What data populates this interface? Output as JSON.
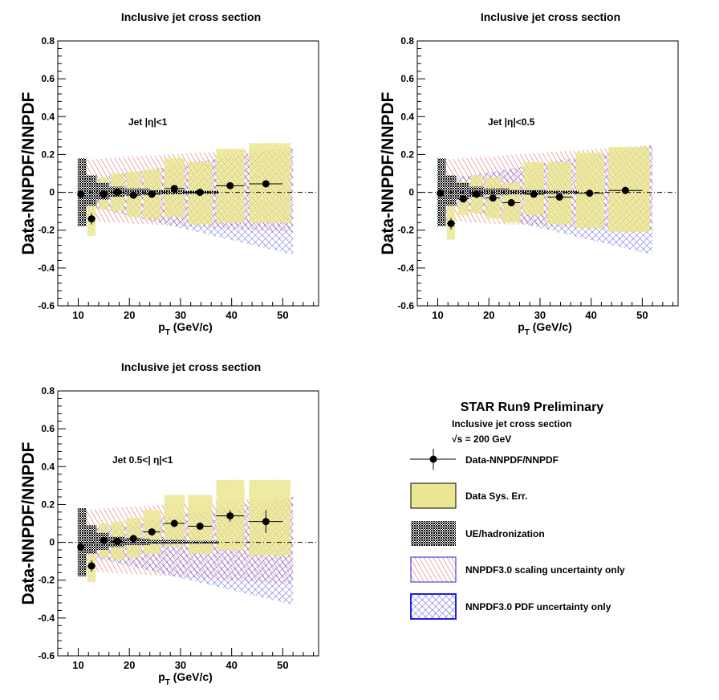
{
  "figure": {
    "status": "STAR Run9 Preliminary",
    "subtitle": "Inclusive jet cross section",
    "energy_label": "√s = 200 GeV",
    "colors": {
      "background": "#ffffff",
      "data_sys": "#e6e08a",
      "ue_hadronization": "#000000",
      "scaling": "#e02020",
      "pdf": "#2020e0",
      "reference_line": "#000000"
    }
  },
  "legend": [
    {
      "label": "Data-NNPDF/NNPDF",
      "type": "marker"
    },
    {
      "label": "Data Sys. Err.",
      "type": "sys"
    },
    {
      "label": "UE/hadronization",
      "type": "ue"
    },
    {
      "label": "NNPDF3.0 scaling uncertainty only",
      "type": "scaling"
    },
    {
      "label": "NNPDF3.0 PDF uncertainty only",
      "type": "pdf"
    }
  ],
  "chart_data": [
    {
      "type": "scatter",
      "title": "Inclusive jet cross section",
      "annotation": "Jet |η|<1",
      "xlabel": "pT (GeV/c)",
      "ylabel": "Data-NNPDF/NNPDF",
      "xlim": [
        6,
        57
      ],
      "ylim": [
        -0.6,
        0.8
      ],
      "xticks": [
        10,
        20,
        30,
        40,
        50
      ],
      "yticks": [
        -0.6,
        -0.4,
        -0.2,
        0,
        0.2,
        0.4,
        0.6,
        0.8
      ],
      "grid": false,
      "points": [
        {
          "x": 10.5,
          "y": -0.01,
          "xerr": 0.6
        },
        {
          "x": 12.6,
          "y": -0.14,
          "xerr": 0.8,
          "yerr": 0.03
        },
        {
          "x": 15.0,
          "y": -0.01,
          "xerr": 1.0
        },
        {
          "x": 17.6,
          "y": 0.0,
          "xerr": 1.2
        },
        {
          "x": 20.8,
          "y": -0.015,
          "xerr": 1.4
        },
        {
          "x": 24.4,
          "y": -0.01,
          "xerr": 1.7
        },
        {
          "x": 28.8,
          "y": 0.02,
          "xerr": 2.0
        },
        {
          "x": 33.8,
          "y": 0.0,
          "xerr": 2.4
        },
        {
          "x": 39.7,
          "y": 0.035,
          "xerr": 2.8
        },
        {
          "x": 46.7,
          "y": 0.045,
          "xerr": 3.3,
          "yerr": 0.02
        }
      ],
      "data_sys": [
        {
          "x0": 9.9,
          "x1": 11.1,
          "lo": -0.05,
          "hi": 0.04
        },
        {
          "x0": 11.8,
          "x1": 13.4,
          "lo": -0.23,
          "hi": -0.06
        },
        {
          "x0": 14.0,
          "x1": 16.0,
          "lo": -0.09,
          "hi": 0.08
        },
        {
          "x0": 16.4,
          "x1": 18.9,
          "lo": -0.1,
          "hi": 0.1
        },
        {
          "x0": 19.4,
          "x1": 22.3,
          "lo": -0.13,
          "hi": 0.11
        },
        {
          "x0": 22.7,
          "x1": 26.2,
          "lo": -0.14,
          "hi": 0.12
        },
        {
          "x0": 26.8,
          "x1": 30.8,
          "lo": -0.13,
          "hi": 0.18
        },
        {
          "x0": 31.5,
          "x1": 36.2,
          "lo": -0.17,
          "hi": 0.16
        },
        {
          "x0": 37.0,
          "x1": 42.5,
          "lo": -0.16,
          "hi": 0.23
        },
        {
          "x0": 43.4,
          "x1": 51.5,
          "lo": -0.16,
          "hi": 0.26
        }
      ],
      "ue_had": [
        {
          "x0": 9.9,
          "x1": 11.6,
          "lo": -0.18,
          "hi": 0.18
        },
        {
          "x0": 11.6,
          "x1": 13.6,
          "lo": -0.07,
          "hi": 0.09
        },
        {
          "x0": 13.6,
          "x1": 16.0,
          "lo": -0.04,
          "hi": 0.05
        },
        {
          "x0": 16.0,
          "x1": 19.0,
          "lo": -0.025,
          "hi": 0.03
        },
        {
          "x0": 19.0,
          "x1": 24.0,
          "lo": -0.015,
          "hi": 0.02
        },
        {
          "x0": 24.0,
          "x1": 31.0,
          "lo": -0.01,
          "hi": 0.012
        },
        {
          "x0": 31.0,
          "x1": 37.5,
          "lo": -0.008,
          "hi": 0.008
        }
      ],
      "scaling_band": {
        "x": [
          10,
          52
        ],
        "lo": [
          -0.15,
          -0.21
        ],
        "hi": [
          0.17,
          0.24
        ]
      },
      "pdf_band": {
        "x": [
          10,
          52
        ],
        "lo": [
          -0.06,
          -0.33
        ],
        "hi": [
          0.06,
          0.24
        ]
      }
    },
    {
      "type": "scatter",
      "title": "Inclusive jet cross section",
      "annotation": "Jet |η|<0.5",
      "xlabel": "pT (GeV/c)",
      "ylabel": "Data-NNPDF/NNPDF",
      "xlim": [
        6,
        57
      ],
      "ylim": [
        -0.6,
        0.8
      ],
      "xticks": [
        10,
        20,
        30,
        40,
        50
      ],
      "yticks": [
        -0.6,
        -0.4,
        -0.2,
        0,
        0.2,
        0.4,
        0.6,
        0.8
      ],
      "grid": false,
      "points": [
        {
          "x": 10.5,
          "y": -0.005,
          "xerr": 0.6
        },
        {
          "x": 12.6,
          "y": -0.165,
          "xerr": 0.8,
          "yerr": 0.03
        },
        {
          "x": 15.0,
          "y": -0.035,
          "xerr": 1.0
        },
        {
          "x": 17.6,
          "y": -0.01,
          "xerr": 1.2
        },
        {
          "x": 20.8,
          "y": -0.03,
          "xerr": 1.4
        },
        {
          "x": 24.4,
          "y": -0.055,
          "xerr": 1.7
        },
        {
          "x": 28.8,
          "y": -0.01,
          "xerr": 2.0
        },
        {
          "x": 33.8,
          "y": -0.025,
          "xerr": 2.4
        },
        {
          "x": 39.7,
          "y": -0.005,
          "xerr": 2.8
        },
        {
          "x": 46.7,
          "y": 0.01,
          "xerr": 3.3,
          "yerr": 0.02
        }
      ],
      "data_sys": [
        {
          "x0": 9.9,
          "x1": 11.1,
          "lo": -0.05,
          "hi": 0.04
        },
        {
          "x0": 11.8,
          "x1": 13.4,
          "lo": -0.25,
          "hi": -0.07
        },
        {
          "x0": 14.0,
          "x1": 16.0,
          "lo": -0.12,
          "hi": 0.06
        },
        {
          "x0": 16.4,
          "x1": 18.9,
          "lo": -0.11,
          "hi": 0.09
        },
        {
          "x0": 19.4,
          "x1": 22.3,
          "lo": -0.14,
          "hi": 0.08
        },
        {
          "x0": 22.7,
          "x1": 26.2,
          "lo": -0.16,
          "hi": 0.05
        },
        {
          "x0": 26.8,
          "x1": 30.8,
          "lo": -0.12,
          "hi": 0.16
        },
        {
          "x0": 31.5,
          "x1": 36.2,
          "lo": -0.17,
          "hi": 0.16
        },
        {
          "x0": 37.0,
          "x1": 42.5,
          "lo": -0.19,
          "hi": 0.21
        },
        {
          "x0": 43.4,
          "x1": 51.5,
          "lo": -0.21,
          "hi": 0.24
        }
      ],
      "ue_had": [
        {
          "x0": 9.9,
          "x1": 11.6,
          "lo": -0.18,
          "hi": 0.18
        },
        {
          "x0": 11.6,
          "x1": 13.6,
          "lo": -0.07,
          "hi": 0.09
        },
        {
          "x0": 13.6,
          "x1": 16.0,
          "lo": -0.04,
          "hi": 0.05
        },
        {
          "x0": 16.0,
          "x1": 19.0,
          "lo": -0.025,
          "hi": 0.03
        },
        {
          "x0": 19.0,
          "x1": 24.0,
          "lo": -0.015,
          "hi": 0.02
        },
        {
          "x0": 24.0,
          "x1": 31.0,
          "lo": -0.01,
          "hi": 0.012
        },
        {
          "x0": 31.0,
          "x1": 37.5,
          "lo": -0.008,
          "hi": 0.008
        }
      ],
      "scaling_band": {
        "x": [
          10,
          52
        ],
        "lo": [
          -0.15,
          -0.21
        ],
        "hi": [
          0.17,
          0.25
        ]
      },
      "pdf_band": {
        "x": [
          10,
          52
        ],
        "lo": [
          -0.06,
          -0.33
        ],
        "hi": [
          0.06,
          0.25
        ]
      }
    },
    {
      "type": "scatter",
      "title": "Inclusive jet cross section",
      "annotation": "Jet 0.5<| η|<1",
      "xlabel": "pT (GeV/c)",
      "ylabel": "Data-NNPDF/NNPDF",
      "xlim": [
        6,
        57
      ],
      "ylim": [
        -0.6,
        0.8
      ],
      "xticks": [
        10,
        20,
        30,
        40,
        50
      ],
      "yticks": [
        -0.6,
        -0.4,
        -0.2,
        0,
        0.2,
        0.4,
        0.6,
        0.8
      ],
      "grid": false,
      "points": [
        {
          "x": 10.5,
          "y": -0.025,
          "xerr": 0.6
        },
        {
          "x": 12.6,
          "y": -0.125,
          "xerr": 0.8,
          "yerr": 0.03
        },
        {
          "x": 15.0,
          "y": 0.01,
          "xerr": 1.0
        },
        {
          "x": 17.6,
          "y": 0.005,
          "xerr": 1.2
        },
        {
          "x": 20.8,
          "y": 0.02,
          "xerr": 1.4
        },
        {
          "x": 24.4,
          "y": 0.055,
          "xerr": 1.7
        },
        {
          "x": 28.8,
          "y": 0.1,
          "xerr": 2.0
        },
        {
          "x": 33.8,
          "y": 0.085,
          "xerr": 2.4
        },
        {
          "x": 39.7,
          "y": 0.14,
          "xerr": 2.8,
          "yerr": 0.03
        },
        {
          "x": 46.7,
          "y": 0.11,
          "xerr": 3.3,
          "yerr": 0.06
        }
      ],
      "data_sys": [
        {
          "x0": 9.9,
          "x1": 11.1,
          "lo": -0.06,
          "hi": 0.03
        },
        {
          "x0": 11.8,
          "x1": 13.4,
          "lo": -0.21,
          "hi": -0.05
        },
        {
          "x0": 14.0,
          "x1": 16.0,
          "lo": -0.08,
          "hi": 0.1
        },
        {
          "x0": 16.4,
          "x1": 18.9,
          "lo": -0.09,
          "hi": 0.11
        },
        {
          "x0": 19.4,
          "x1": 22.3,
          "lo": -0.08,
          "hi": 0.13
        },
        {
          "x0": 22.7,
          "x1": 26.2,
          "lo": -0.06,
          "hi": 0.17
        },
        {
          "x0": 26.8,
          "x1": 30.8,
          "lo": -0.02,
          "hi": 0.25
        },
        {
          "x0": 31.5,
          "x1": 36.2,
          "lo": -0.06,
          "hi": 0.25
        },
        {
          "x0": 37.0,
          "x1": 42.5,
          "lo": -0.04,
          "hi": 0.33
        },
        {
          "x0": 43.4,
          "x1": 51.5,
          "lo": -0.07,
          "hi": 0.33
        }
      ],
      "ue_had": [
        {
          "x0": 9.9,
          "x1": 11.6,
          "lo": -0.18,
          "hi": 0.18
        },
        {
          "x0": 11.6,
          "x1": 13.6,
          "lo": -0.06,
          "hi": 0.09
        },
        {
          "x0": 13.6,
          "x1": 16.0,
          "lo": -0.04,
          "hi": 0.05
        },
        {
          "x0": 16.0,
          "x1": 19.0,
          "lo": -0.025,
          "hi": 0.03
        },
        {
          "x0": 19.0,
          "x1": 24.0,
          "lo": -0.015,
          "hi": 0.02
        },
        {
          "x0": 24.0,
          "x1": 31.0,
          "lo": -0.01,
          "hi": 0.012
        },
        {
          "x0": 31.0,
          "x1": 37.5,
          "lo": -0.008,
          "hi": 0.008
        }
      ],
      "scaling_band": {
        "x": [
          10,
          52
        ],
        "lo": [
          -0.15,
          -0.22
        ],
        "hi": [
          0.17,
          0.24
        ]
      },
      "pdf_band": {
        "x": [
          10,
          52
        ],
        "lo": [
          -0.06,
          -0.33
        ],
        "hi": [
          0.06,
          0.24
        ]
      }
    }
  ]
}
